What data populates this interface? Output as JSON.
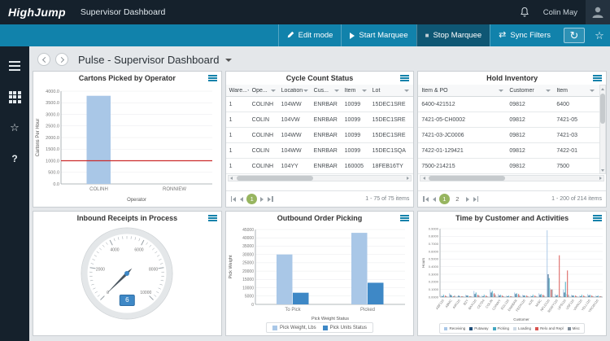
{
  "topbar": {
    "logo": "HighJump",
    "app_title": "Supervisor Dashboard",
    "user_name": "Colin May"
  },
  "toolbar": {
    "edit_mode": "Edit mode",
    "start_marquee": "Start Marquee",
    "stop_marquee": "Stop Marquee",
    "sync_filters": "Sync Filters"
  },
  "icons": {
    "play": "▶",
    "stop": "■",
    "sync": "⇄",
    "refresh": "↻",
    "star": "☆",
    "help": "?"
  },
  "page": {
    "title": "Pulse - Supervisor Dashboard"
  },
  "colors": {
    "accent": "#1182ab",
    "bar_blue": "#a9c7e7",
    "dark_blue": "#3e88c6",
    "threshold_red": "#cc2b2b",
    "pager_green": "#97b55f"
  },
  "panels": {
    "cartons": {
      "title": "Cartons Picked by Operator",
      "chart_data": {
        "type": "bar",
        "categories": [
          "COLINH",
          "RONNIEW"
        ],
        "values": [
          3800,
          0
        ],
        "xlabel": "Operator",
        "ylabel": "Cartons Per Hour",
        "ylim": [
          0,
          4000
        ],
        "ytick_step": 500,
        "tick_decimals": 1,
        "bar_color": "#a9c7e7",
        "threshold": {
          "value": 1000,
          "color": "#cc2b2b"
        },
        "grid": true,
        "legend_position": "none"
      }
    },
    "cycle_count": {
      "title": "Cycle Count Status",
      "columns": [
        "Ware...",
        "Ope...",
        "Location",
        "Cus...",
        "Item",
        "Lot"
      ],
      "rows": [
        [
          "1",
          "COLINH",
          "104WW",
          "ENRBAR",
          "10099",
          "15DEC1SRE"
        ],
        [
          "1",
          "COLIN",
          "104VW",
          "ENRBAR",
          "10099",
          "15DEC1SRE"
        ],
        [
          "1",
          "COLINH",
          "104WW",
          "ENRBAR",
          "10099",
          "15DEC1SRE"
        ],
        [
          "1",
          "COLIN",
          "104WW",
          "ENRBAR",
          "10099",
          "15DEC1SQA"
        ],
        [
          "1",
          "COLINH",
          "104YY",
          "ENRBAR",
          "160005",
          "18FEB16TY"
        ]
      ],
      "pager": {
        "pages": [
          "1"
        ],
        "current": "1",
        "summary": "1 - 75 of 75 items"
      }
    },
    "hold_inventory": {
      "title": "Hold Inventory",
      "columns": [
        "Item & PO",
        "Customer",
        "Item"
      ],
      "rows": [
        [
          "6400-421512",
          "09812",
          "6400"
        ],
        [
          "7421-05-CH0002",
          "09812",
          "7421-05"
        ],
        [
          "7421-03-JC0006",
          "09812",
          "7421-03"
        ],
        [
          "7422-01-129421",
          "09812",
          "7422-01"
        ],
        [
          "7500-214215",
          "09812",
          "7500"
        ]
      ],
      "pager": {
        "pages": [
          "1",
          "2"
        ],
        "current": "1",
        "summary": "1 - 200 of 214 items"
      }
    },
    "inbound": {
      "title": "Inbound Receipts in Process",
      "chart_data": {
        "type": "gauge",
        "min": 0,
        "max": 10000,
        "value": 6,
        "value_label": "6",
        "major_ticks": [
          0,
          2000,
          4000,
          6000,
          8000,
          10000
        ],
        "minor_tick_step": 250
      }
    },
    "outbound": {
      "title": "Outbound Order Picking",
      "chart_data": {
        "type": "bar",
        "categories": [
          "To Pick",
          "Picked"
        ],
        "series": [
          {
            "name": "Pick Weight, Lbs",
            "color": "#a9c7e7",
            "values": [
              30000,
              43000
            ]
          },
          {
            "name": "Pick Units Status",
            "color": "#3e88c6",
            "values": [
              7000,
              13000
            ]
          }
        ],
        "xlabel": "Pick Weight Status",
        "ylabel": "Pick Weight",
        "ylim": [
          0,
          45000
        ],
        "ytick_step": 5000,
        "tick_decimals": 0,
        "legend_position": "bottom"
      }
    },
    "time_by_customer": {
      "title": "Time by Customer and Activities",
      "chart_data": {
        "type": "bar",
        "categories": [
          "ABF110",
          "ABMC",
          "AIR110",
          "B2Y",
          "BAX110",
          "CETD4",
          "COLIN",
          "CONWY",
          "EGL110",
          "ENRBAR",
          "FEDX110",
          "HJS",
          "MISC",
          "NFLD110",
          "RDWY110",
          "UPS110",
          "USF110",
          "VIKN110",
          "YELL110",
          "YRCW110"
        ],
        "series": [
          {
            "name": "Receiving",
            "color": "#a9c7e7",
            "values": [
              0.02,
              0.05,
              0.01,
              0.03,
              0.08,
              0.02,
              0.1,
              0.04,
              0.02,
              0.06,
              0.03,
              0.02,
              0.05,
              0.88,
              0.04,
              0.1,
              0.03,
              0.02,
              0.04,
              0.02
            ]
          },
          {
            "name": "Putaway",
            "color": "#1f4e79",
            "values": [
              0.01,
              0.03,
              0.02,
              0.02,
              0.04,
              0.01,
              0.06,
              0.02,
              0.01,
              0.04,
              0.02,
              0.01,
              0.03,
              0.3,
              0.02,
              0.06,
              0.02,
              0.01,
              0.02,
              0.01
            ]
          },
          {
            "name": "Picking",
            "color": "#43a7c1",
            "values": [
              0.03,
              0.02,
              0.01,
              0.02,
              0.06,
              0.03,
              0.08,
              0.03,
              0.02,
              0.05,
              0.02,
              0.03,
              0.04,
              0.25,
              0.03,
              0.2,
              0.02,
              0.03,
              0.03,
              0.02
            ]
          },
          {
            "name": "Loading",
            "color": "#cdd9e5",
            "values": [
              0.01,
              0.01,
              0.01,
              0.01,
              0.02,
              0.01,
              0.04,
              0.02,
              0.01,
              0.03,
              0.01,
              0.01,
              0.02,
              0.12,
              0.02,
              0.04,
              0.01,
              0.01,
              0.02,
              0.01
            ]
          },
          {
            "name": "Relo and Repl",
            "color": "#d9534f",
            "values": [
              0.02,
              0.01,
              0.01,
              0.01,
              0.03,
              0.02,
              0.05,
              0.02,
              0.01,
              0.04,
              0.02,
              0.02,
              0.03,
              0.1,
              0.55,
              0.35,
              0.02,
              0.02,
              0.02,
              0.01
            ]
          },
          {
            "name": "Misc",
            "color": "#7f8c99",
            "values": [
              0.01,
              0.02,
              0.01,
              0.01,
              0.02,
              0.01,
              0.03,
              0.01,
              0.01,
              0.02,
              0.01,
              0.01,
              0.02,
              0.1,
              0.01,
              0.03,
              0.01,
              0.01,
              0.01,
              0.01
            ]
          }
        ],
        "xlabel": "Customer",
        "ylabel": "Hours",
        "ylim": [
          0,
          0.9
        ],
        "ytick_step": 0.1,
        "tick_decimals": 4,
        "legend_position": "bottom"
      }
    }
  }
}
